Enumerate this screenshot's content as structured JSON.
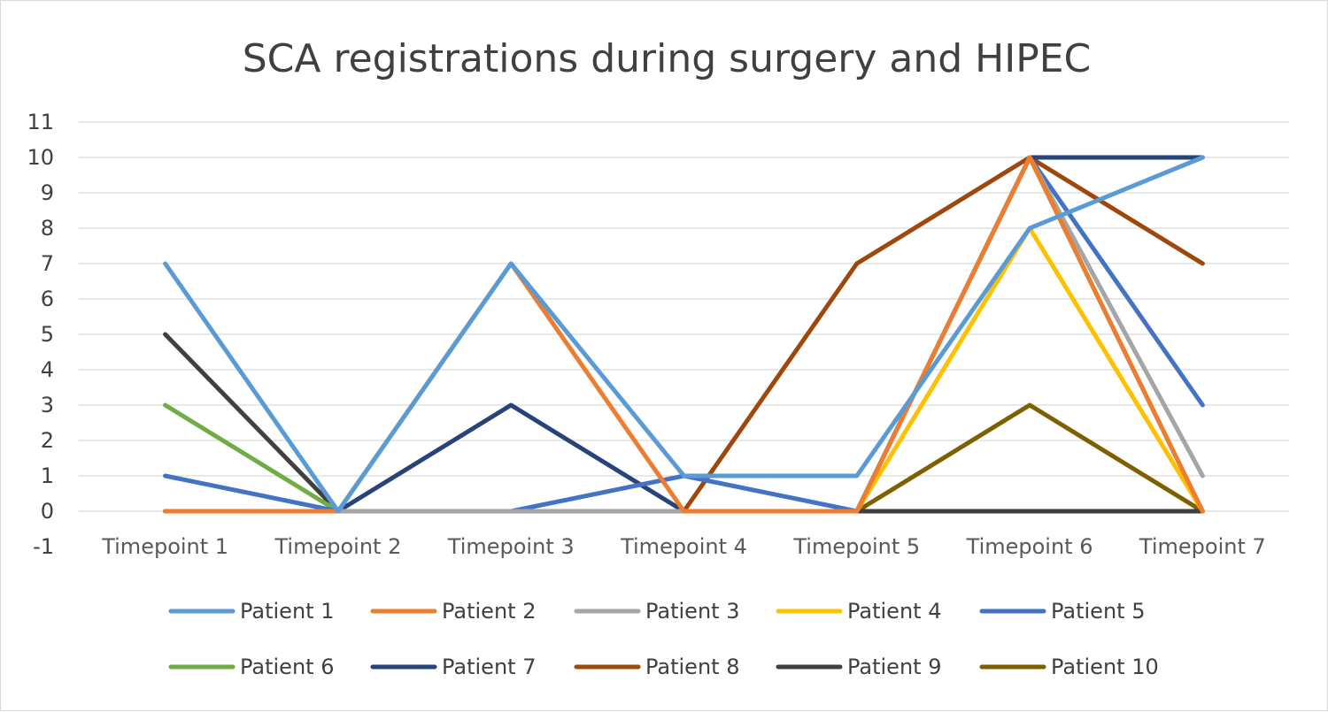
{
  "chart_data": {
    "type": "line",
    "title": "SCA registrations during surgery and HIPEC",
    "xlabel": "",
    "ylabel": "",
    "categories": [
      "Timepoint 1",
      "Timepoint 2",
      "Timepoint 3",
      "Timepoint 4",
      "Timepoint 5",
      "Timepoint 6",
      "Timepoint 7"
    ],
    "y_ticks": [
      "-1",
      "0",
      "1",
      "2",
      "3",
      "4",
      "5",
      "6",
      "7",
      "8",
      "9",
      "10",
      "11"
    ],
    "ylim": [
      -1,
      11
    ],
    "grid": true,
    "legend_position": "bottom",
    "series": [
      {
        "name": "Patient 1",
        "color": "#5b9bd5",
        "values": [
          7,
          0,
          7,
          1,
          1,
          8,
          10
        ]
      },
      {
        "name": "Patient 2",
        "color": "#ed7d31",
        "values": [
          0,
          0,
          7,
          0,
          0,
          10,
          0
        ]
      },
      {
        "name": "Patient 3",
        "color": "#a5a5a5",
        "values": [
          0,
          0,
          0,
          0,
          0,
          10,
          1
        ]
      },
      {
        "name": "Patient 4",
        "color": "#ffc000",
        "values": [
          0,
          0,
          0,
          0,
          0,
          8,
          0
        ]
      },
      {
        "name": "Patient 5",
        "color": "#4472c4",
        "values": [
          1,
          0,
          0,
          1,
          0,
          10,
          3
        ]
      },
      {
        "name": "Patient 6",
        "color": "#70ad47",
        "values": [
          3,
          0,
          0,
          0,
          0,
          10,
          0
        ]
      },
      {
        "name": "Patient 7",
        "color": "#264478",
        "values": [
          0,
          0,
          3,
          0,
          0,
          10,
          10
        ]
      },
      {
        "name": "Patient 8",
        "color": "#9e480e",
        "values": [
          0,
          0,
          0,
          0,
          7,
          10,
          7
        ]
      },
      {
        "name": "Patient 9",
        "color": "#404040",
        "values": [
          5,
          0,
          0,
          0,
          0,
          0,
          0
        ]
      },
      {
        "name": "Patient 10",
        "color": "#7f6000",
        "values": [
          0,
          0,
          0,
          0,
          0,
          3,
          0
        ]
      }
    ]
  }
}
